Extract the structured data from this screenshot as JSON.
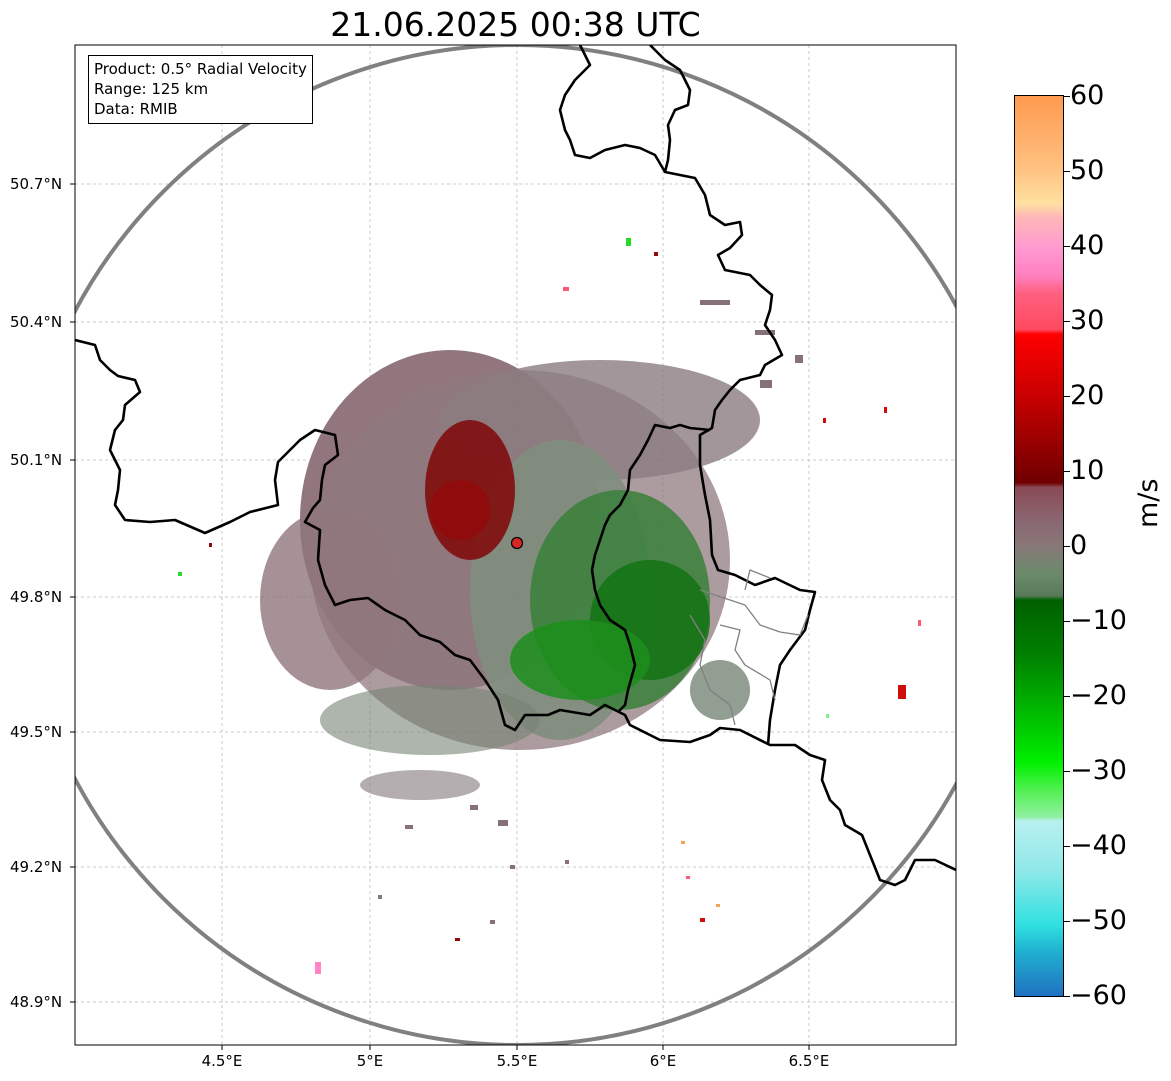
{
  "title": "21.06.2025 00:38 UTC",
  "info": {
    "product": "Product: 0.5° Radial Velocity",
    "range": "Range: 125 km",
    "data": "Data: RMIB"
  },
  "axes": {
    "lon_ticks": [
      "4.5°E",
      "5°E",
      "5.5°E",
      "6°E",
      "6.5°E"
    ],
    "lat_ticks": [
      "50.7°N",
      "50.4°N",
      "50.1°N",
      "49.8°N",
      "49.5°N",
      "49.2°N",
      "48.9°N"
    ]
  },
  "colorbar": {
    "unit": "m/s",
    "min": -60,
    "max": 60,
    "tick_labels": [
      "60",
      "50",
      "40",
      "30",
      "20",
      "10",
      "0",
      "−10",
      "−20",
      "−30",
      "−40",
      "−50",
      "−60"
    ]
  },
  "radar": {
    "lon": 5.505,
    "lat": 49.914,
    "range_km": 125
  },
  "colors": {
    "range_ring": "#808080",
    "border": "#000000",
    "site_marker": "#d62728",
    "approaching": "#00a000",
    "receding": "#8b0000"
  }
}
